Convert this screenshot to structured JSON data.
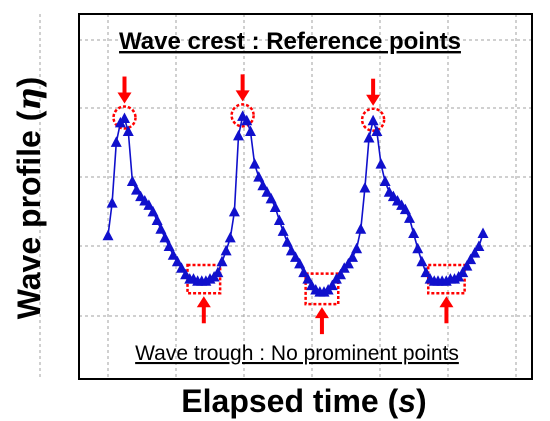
{
  "chart_data": {
    "type": "line",
    "title": "",
    "xlabel": {
      "text": "Elapsed time (",
      "symbol": "s",
      "close": ")"
    },
    "ylabel": {
      "text": "Wave profile (",
      "symbol": "η",
      "close": ")"
    },
    "xlim": [
      0,
      100
    ],
    "ylim": [
      0,
      100
    ],
    "grid": true,
    "tick_labels": false,
    "marker": "triangle",
    "colors": {
      "series": "#1010cc",
      "annotation": "#ff0000",
      "frame": "#000000",
      "grid": "#a0a0a0"
    },
    "series": [
      {
        "x": [
          0,
          1.1,
          2.2,
          3.3,
          4.4,
          5.4,
          6.5,
          7.6,
          8.7,
          9.8,
          10.9,
          12.0,
          13.1,
          14.1,
          15.2,
          16.3,
          17.4,
          18.5,
          19.6,
          20.7,
          21.8,
          22.8,
          23.9,
          25.0,
          26.1,
          27.2,
          28.3,
          29.3,
          30.4,
          31.5,
          32.6,
          33.7,
          34.8,
          35.9,
          37.0,
          38.0,
          39.1,
          40.2,
          41.3,
          42.4,
          43.5,
          44.6,
          45.7,
          46.7,
          47.8,
          48.9,
          50.0,
          51.1,
          52.2,
          53.3,
          54.3,
          55.4,
          56.5,
          57.6,
          58.7,
          59.8,
          60.9,
          62.0,
          63.0,
          64.1,
          65.2,
          66.3,
          67.4,
          68.5,
          69.6,
          70.7,
          71.7,
          72.8,
          73.9,
          75.0,
          76.1,
          77.2,
          78.3,
          79.3,
          80.4,
          81.5,
          82.6,
          83.7,
          84.8,
          85.9,
          87.0,
          88.0,
          89.1,
          90.2,
          91.3,
          92.4,
          93.5,
          94.6,
          95.7,
          96.7,
          97.8,
          98.9,
          100
        ],
        "y": [
          37,
          52,
          80,
          89,
          91,
          85,
          62,
          58,
          55,
          53,
          51,
          48,
          44,
          40,
          36,
          32,
          28,
          25,
          22,
          19,
          17,
          17,
          16,
          16,
          16,
          17,
          18,
          20,
          25,
          30,
          36,
          48,
          83,
          92,
          90,
          85,
          70,
          64,
          60,
          57,
          54,
          50,
          44,
          39,
          34,
          30,
          27,
          24,
          20,
          17,
          14,
          12,
          11,
          11,
          12,
          14,
          17,
          19,
          22,
          24,
          27,
          31,
          40,
          59,
          82,
          90,
          85,
          70,
          62,
          57,
          55,
          53,
          51,
          49,
          45,
          38,
          31,
          25,
          20,
          17,
          16,
          16,
          16,
          16,
          17,
          17,
          18,
          20,
          23,
          26,
          29,
          32,
          38
        ]
      }
    ],
    "annotations": {
      "crest_label": "Wave crest : Reference points",
      "trough_label": "Wave trough : No prominent points",
      "crest_indices": [
        4,
        33,
        65
      ],
      "trough_ranges": [
        [
          21,
          26
        ],
        [
          50,
          55
        ],
        [
          80,
          86
        ]
      ]
    }
  }
}
